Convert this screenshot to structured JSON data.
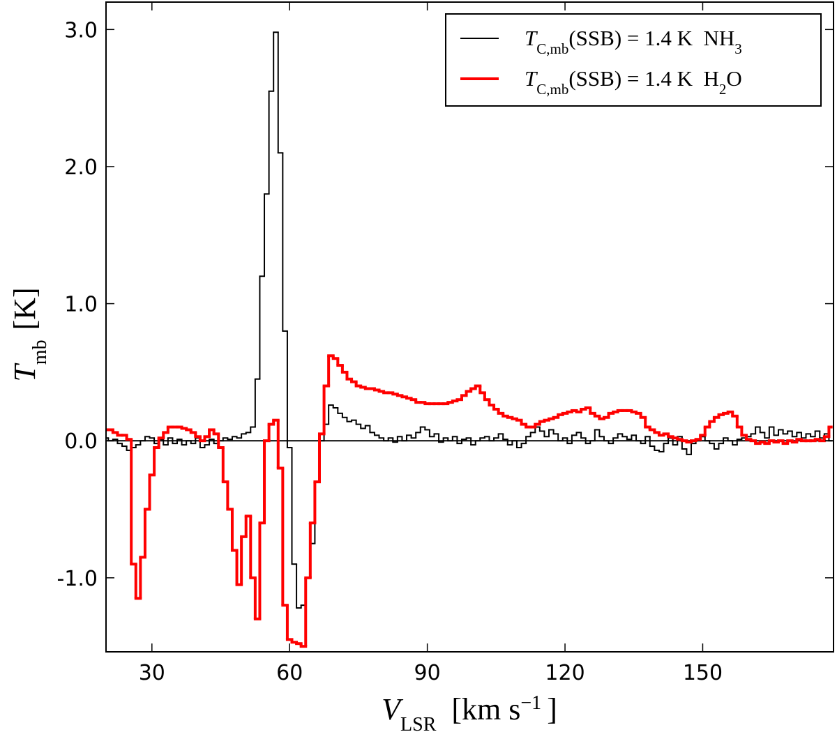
{
  "chart_data": {
    "type": "step",
    "xlabel": [
      "V",
      "LSR",
      "[km s",
      "−1",
      "]"
    ],
    "ylabel": [
      "T",
      "mb",
      "[K]"
    ],
    "xlim": [
      20,
      178.5
    ],
    "ylim": [
      -1.54,
      3.2
    ],
    "xticks": [
      30,
      60,
      90,
      120,
      150
    ],
    "yticks": [
      {
        "value": -1,
        "label": "-1.0"
      },
      {
        "value": 0,
        "label": "0.0"
      },
      {
        "value": 1,
        "label": "1.0"
      },
      {
        "value": 2,
        "label": "2.0"
      },
      {
        "value": 3,
        "label": "3.0"
      }
    ],
    "reference_line": 0,
    "legend": "upper right",
    "x": [
      20,
      21,
      22,
      23,
      24,
      25,
      26,
      27,
      28,
      29,
      30,
      31,
      32,
      33,
      34,
      35,
      36,
      37,
      38,
      39,
      40,
      41,
      42,
      43,
      44,
      45,
      46,
      47,
      48,
      49,
      50,
      51,
      52,
      53,
      54,
      55,
      56,
      57,
      58,
      59,
      60,
      61,
      62,
      63,
      64,
      65,
      66,
      67,
      68,
      69,
      70,
      71,
      72,
      73,
      74,
      75,
      76,
      77,
      78,
      79,
      80,
      81,
      82,
      83,
      84,
      85,
      86,
      87,
      88,
      89,
      90,
      91,
      92,
      93,
      94,
      95,
      96,
      97,
      98,
      99,
      100,
      101,
      102,
      103,
      104,
      105,
      106,
      107,
      108,
      109,
      110,
      111,
      112,
      113,
      114,
      115,
      116,
      117,
      118,
      119,
      120,
      121,
      122,
      123,
      124,
      125,
      126,
      127,
      128,
      129,
      130,
      131,
      132,
      133,
      134,
      135,
      136,
      137,
      138,
      139,
      140,
      141,
      142,
      143,
      144,
      145,
      146,
      147,
      148,
      149,
      150,
      151,
      152,
      153,
      154,
      155,
      156,
      157,
      158,
      159,
      160,
      161,
      162,
      163,
      164,
      165,
      166,
      167,
      168,
      169,
      170,
      171,
      172,
      173,
      174,
      175,
      176,
      177,
      178
    ],
    "series": [
      {
        "name": [
          "T",
          "C,mb",
          "(SSB) = 1.4 K  NH",
          "3"
        ],
        "color": "#000000",
        "width": 2,
        "values": [
          0.02,
          0.0,
          0.01,
          -0.02,
          -0.04,
          -0.07,
          -0.05,
          -0.03,
          0.0,
          0.03,
          0.02,
          -0.02,
          0.01,
          -0.03,
          0.02,
          -0.02,
          0.01,
          -0.03,
          0.0,
          -0.02,
          0.02,
          -0.05,
          -0.03,
          0.01,
          -0.02,
          0.0,
          0.02,
          0.01,
          0.03,
          0.02,
          0.05,
          0.06,
          0.1,
          0.45,
          1.2,
          1.8,
          2.55,
          2.98,
          2.1,
          0.8,
          -0.05,
          -0.9,
          -1.22,
          -1.2,
          -1.0,
          -0.75,
          -0.3,
          0.0,
          0.12,
          0.26,
          0.24,
          0.2,
          0.17,
          0.14,
          0.15,
          0.12,
          0.09,
          0.11,
          0.06,
          0.04,
          0.02,
          0.0,
          0.02,
          -0.01,
          0.03,
          0.0,
          0.04,
          0.02,
          0.06,
          0.1,
          0.08,
          0.03,
          0.05,
          -0.01,
          0.02,
          0.0,
          0.03,
          -0.02,
          0.01,
          0.02,
          -0.03,
          0.0,
          0.02,
          0.03,
          0.0,
          0.02,
          0.05,
          0.01,
          -0.03,
          0.0,
          -0.05,
          -0.02,
          0.03,
          0.06,
          0.1,
          0.07,
          0.03,
          0.08,
          0.05,
          0.0,
          0.02,
          -0.02,
          0.04,
          0.06,
          0.02,
          -0.02,
          0.0,
          0.08,
          0.03,
          0.0,
          -0.02,
          0.02,
          0.05,
          0.03,
          0.01,
          0.04,
          0.0,
          -0.02,
          0.03,
          -0.04,
          -0.07,
          -0.08,
          -0.02,
          0.02,
          -0.03,
          0.03,
          -0.06,
          -0.1,
          -0.02,
          0.0,
          0.03,
          0.0,
          -0.02,
          -0.06,
          -0.02,
          0.02,
          0.0,
          -0.03,
          0.01,
          0.02,
          0.03,
          0.05,
          0.1,
          0.06,
          0.02,
          0.1,
          0.04,
          0.08,
          0.05,
          0.07,
          0.03,
          0.06,
          0.02,
          0.05,
          0.03,
          0.07,
          0.02,
          0.05,
          0.0
        ]
      },
      {
        "name": [
          "T",
          "C,mb",
          "(SSB) = 1.4 K  H",
          "2",
          "O"
        ],
        "color": "#ff0000",
        "width": 4,
        "values": [
          0.08,
          0.08,
          0.06,
          0.04,
          0.04,
          0.01,
          -0.9,
          -1.15,
          -0.85,
          -0.5,
          -0.25,
          -0.05,
          0.02,
          0.06,
          0.1,
          0.1,
          0.1,
          0.09,
          0.08,
          0.06,
          0.03,
          0.0,
          0.03,
          0.08,
          0.05,
          -0.05,
          -0.3,
          -0.5,
          -0.8,
          -1.05,
          -0.7,
          -0.55,
          -1.0,
          -1.3,
          -0.6,
          0.0,
          0.12,
          0.15,
          -0.2,
          -1.2,
          -1.45,
          -1.47,
          -1.48,
          -1.5,
          -1.0,
          -0.6,
          -0.3,
          0.05,
          0.4,
          0.62,
          0.6,
          0.55,
          0.5,
          0.45,
          0.43,
          0.4,
          0.39,
          0.38,
          0.38,
          0.37,
          0.36,
          0.35,
          0.35,
          0.34,
          0.33,
          0.32,
          0.31,
          0.3,
          0.28,
          0.28,
          0.27,
          0.27,
          0.27,
          0.27,
          0.27,
          0.28,
          0.29,
          0.3,
          0.33,
          0.36,
          0.38,
          0.4,
          0.35,
          0.3,
          0.26,
          0.23,
          0.2,
          0.18,
          0.17,
          0.16,
          0.15,
          0.12,
          0.1,
          0.1,
          0.12,
          0.14,
          0.15,
          0.16,
          0.17,
          0.19,
          0.2,
          0.21,
          0.22,
          0.21,
          0.23,
          0.24,
          0.2,
          0.18,
          0.16,
          0.17,
          0.2,
          0.21,
          0.22,
          0.22,
          0.22,
          0.21,
          0.2,
          0.17,
          0.1,
          0.08,
          0.06,
          0.04,
          0.05,
          0.03,
          0.02,
          0.01,
          0.0,
          -0.01,
          0.0,
          0.01,
          0.04,
          0.1,
          0.14,
          0.17,
          0.19,
          0.2,
          0.21,
          0.18,
          0.1,
          0.04,
          0.01,
          0.0,
          -0.02,
          -0.01,
          -0.02,
          0.0,
          -0.01,
          0.0,
          -0.02,
          0.0,
          -0.01,
          0.01,
          0.0,
          0.0,
          0.0,
          0.01,
          0.0,
          0.03,
          0.1
        ]
      }
    ]
  }
}
